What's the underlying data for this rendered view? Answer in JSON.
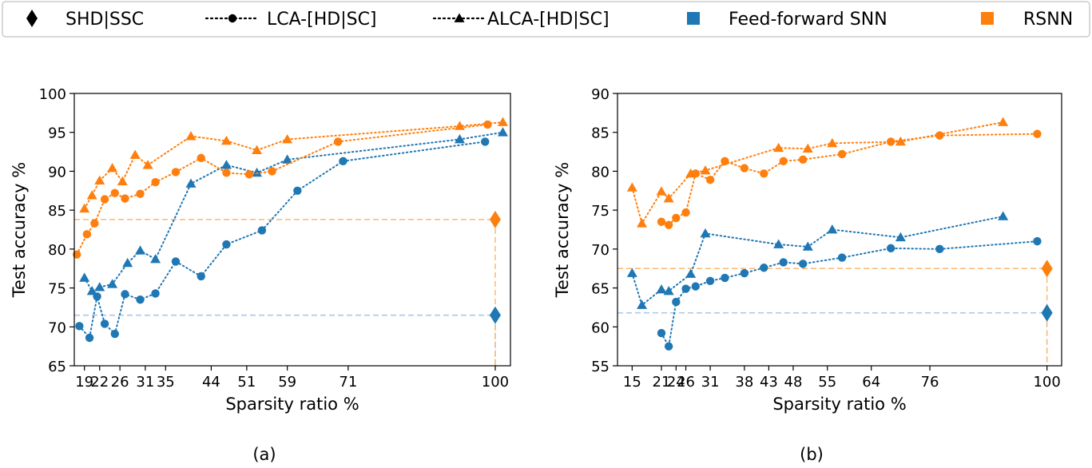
{
  "legend": {
    "items": [
      {
        "label": "SHD|SSC",
        "marker": "diamond",
        "color": "#000000",
        "line": "none"
      },
      {
        "label": "LCA-[HD|SC]",
        "marker": "circle",
        "color": "#000000",
        "line": "dotted"
      },
      {
        "label": "ALCA-[HD|SC]",
        "marker": "triangle",
        "color": "#000000",
        "line": "dotted"
      },
      {
        "label": "Feed-forward SNN",
        "marker": "square",
        "color": "#1f77b4",
        "line": "none"
      },
      {
        "label": "RSNN",
        "marker": "square",
        "color": "#ff7f0e",
        "line": "none"
      }
    ]
  },
  "colors": {
    "blue": "#1f77b4",
    "orange": "#ff7f0e",
    "blue_ref": "#aec7e8",
    "orange_ref": "#ffbb78"
  },
  "chart_data": [
    {
      "type": "line",
      "caption": "(a)",
      "xlabel": "Sparsity ratio %",
      "ylabel": "Test accuracy %",
      "ylim": [
        65,
        100
      ],
      "yticks": [
        65,
        70,
        75,
        80,
        85,
        90,
        95,
        100
      ],
      "xlim": [
        17,
        103
      ],
      "xticks": [
        19,
        22,
        26,
        31,
        35,
        44,
        51,
        59,
        71,
        100
      ],
      "grid": false,
      "series": [
        {
          "name": "LCA-[HD|SC]",
          "model": "Feed-forward SNN",
          "marker": "circle",
          "x": [
            18,
            20,
            21.5,
            23,
            25,
            27,
            30,
            33,
            37,
            42,
            47,
            54,
            61,
            70,
            98
          ],
          "y": [
            70.1,
            68.6,
            73.9,
            70.4,
            69.1,
            74.2,
            73.5,
            74.3,
            78.4,
            76.5,
            80.6,
            82.4,
            87.5,
            91.3,
            93.8
          ]
        },
        {
          "name": "ALCA-[HD|SC]",
          "model": "Feed-forward SNN",
          "marker": "triangle",
          "x": [
            19,
            20.5,
            22,
            24.5,
            27.5,
            30,
            33,
            40,
            47,
            53,
            59,
            93,
            101.5
          ],
          "y": [
            76.3,
            74.6,
            75.1,
            75.5,
            78.2,
            79.8,
            78.7,
            88.4,
            90.8,
            89.8,
            91.5,
            94.1,
            95.0
          ]
        },
        {
          "name": "LCA-[HD|SC]",
          "model": "RSNN",
          "marker": "circle",
          "x": [
            17.5,
            19.5,
            21,
            23,
            25,
            27,
            30,
            33,
            37,
            42,
            47,
            51.5,
            56,
            69,
            98.5
          ],
          "y": [
            79.3,
            81.9,
            83.3,
            86.4,
            87.2,
            86.5,
            87.1,
            88.6,
            89.9,
            91.7,
            89.8,
            89.6,
            90.0,
            93.8,
            96.0
          ]
        },
        {
          "name": "ALCA-[HD|SC]",
          "model": "RSNN",
          "marker": "triangle",
          "x": [
            19,
            20.5,
            22,
            24.5,
            26.5,
            29,
            31.5,
            40,
            47,
            53,
            59,
            93,
            101.5
          ],
          "y": [
            85.2,
            86.9,
            88.8,
            90.4,
            88.7,
            92.1,
            90.8,
            94.5,
            93.9,
            92.7,
            94.1,
            95.8,
            96.3
          ]
        },
        {
          "name": "SHD|SSC",
          "model": "Feed-forward SNN",
          "marker": "diamond",
          "x": [
            100
          ],
          "y": [
            71.5
          ]
        },
        {
          "name": "SHD|SSC",
          "model": "RSNN",
          "marker": "diamond",
          "x": [
            100
          ],
          "y": [
            83.8
          ]
        }
      ]
    },
    {
      "type": "line",
      "caption": "(b)",
      "xlabel": "Sparsity ratio %",
      "ylabel": "Test accuracy %",
      "ylim": [
        55,
        90
      ],
      "yticks": [
        55,
        60,
        65,
        70,
        75,
        80,
        85,
        90
      ],
      "xlim": [
        12,
        103
      ],
      "xticks": [
        15,
        21,
        24,
        26,
        31,
        38,
        43,
        48,
        55,
        64,
        76,
        100
      ],
      "grid": false,
      "series": [
        {
          "name": "LCA-[HD|SC]",
          "model": "Feed-forward SNN",
          "marker": "circle",
          "x": [
            21,
            22.5,
            24,
            26,
            28,
            31,
            34,
            38,
            42,
            46,
            50,
            58,
            68,
            78,
            98
          ],
          "y": [
            59.2,
            57.5,
            63.2,
            64.9,
            65.2,
            65.9,
            66.3,
            66.9,
            67.6,
            68.3,
            68.1,
            68.9,
            70.1,
            70.0,
            71.0
          ]
        },
        {
          "name": "ALCA-[HD|SC]",
          "model": "Feed-forward SNN",
          "marker": "triangle",
          "x": [
            15,
            17,
            21,
            22.5,
            27,
            30,
            45,
            51,
            56,
            70,
            91
          ],
          "y": [
            66.9,
            62.8,
            64.8,
            64.6,
            66.8,
            72.0,
            70.6,
            70.3,
            72.5,
            71.5,
            74.2
          ]
        },
        {
          "name": "LCA-[HD|SC]",
          "model": "RSNN",
          "marker": "circle",
          "x": [
            21,
            22.5,
            24,
            26,
            28,
            31,
            34,
            38,
            42,
            46,
            50,
            58,
            68,
            78,
            98
          ],
          "y": [
            73.5,
            73.1,
            74.0,
            74.7,
            79.7,
            78.9,
            81.3,
            80.4,
            79.7,
            81.3,
            81.5,
            82.2,
            83.8,
            84.6,
            84.8
          ]
        },
        {
          "name": "ALCA-[HD|SC]",
          "model": "RSNN",
          "marker": "triangle",
          "x": [
            15,
            17,
            21,
            22.5,
            27,
            30,
            45,
            51,
            56,
            70,
            91
          ],
          "y": [
            77.9,
            73.3,
            77.4,
            76.5,
            79.7,
            80.1,
            83.0,
            82.9,
            83.6,
            83.8,
            86.3
          ]
        },
        {
          "name": "SHD|SSC",
          "model": "Feed-forward SNN",
          "marker": "diamond",
          "x": [
            100
          ],
          "y": [
            61.8
          ]
        },
        {
          "name": "SHD|SSC",
          "model": "RSNN",
          "marker": "diamond",
          "x": [
            100
          ],
          "y": [
            67.5
          ]
        }
      ]
    }
  ]
}
